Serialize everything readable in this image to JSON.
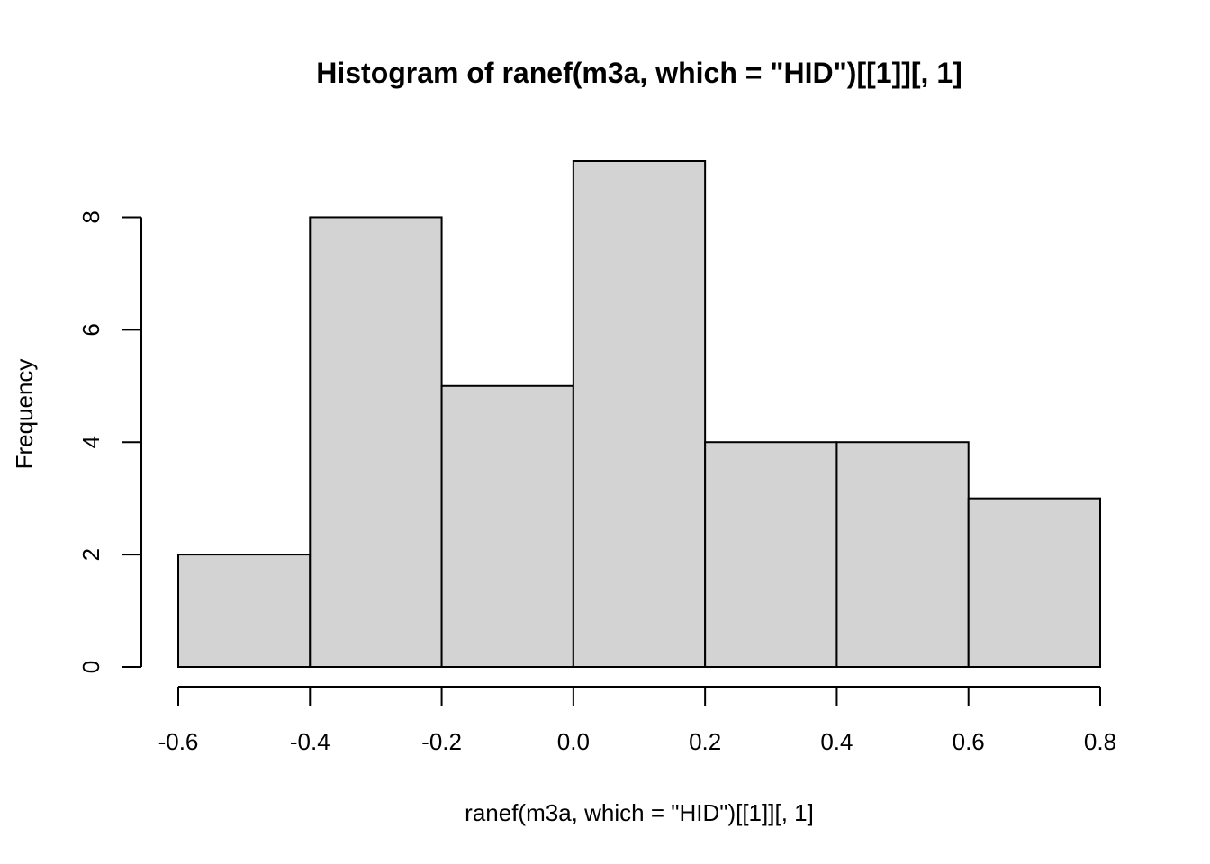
{
  "chart_data": {
    "type": "bar",
    "title": "Histogram of ranef(m3a, which = \"HID\")[[1]][, 1]",
    "xlabel": "ranef(m3a, which = \"HID\")[[1]][, 1]",
    "ylabel": "Frequency",
    "bins": [
      {
        "start": -0.6,
        "end": -0.4,
        "count": 2
      },
      {
        "start": -0.4,
        "end": -0.2,
        "count": 8
      },
      {
        "start": -0.2,
        "end": 0.0,
        "count": 5
      },
      {
        "start": 0.0,
        "end": 0.2,
        "count": 9
      },
      {
        "start": 0.2,
        "end": 0.4,
        "count": 4
      },
      {
        "start": 0.4,
        "end": 0.6,
        "count": 4
      },
      {
        "start": 0.6,
        "end": 0.8,
        "count": 3
      }
    ],
    "xlim": [
      -0.6,
      0.8
    ],
    "ylim": [
      0,
      9
    ],
    "x_ticks": [
      "-0.6",
      "-0.4",
      "-0.2",
      "0.0",
      "0.2",
      "0.4",
      "0.6",
      "0.8"
    ],
    "y_ticks": [
      "0",
      "2",
      "4",
      "6",
      "8"
    ],
    "bar_color": "#d3d3d3",
    "grid": false
  }
}
